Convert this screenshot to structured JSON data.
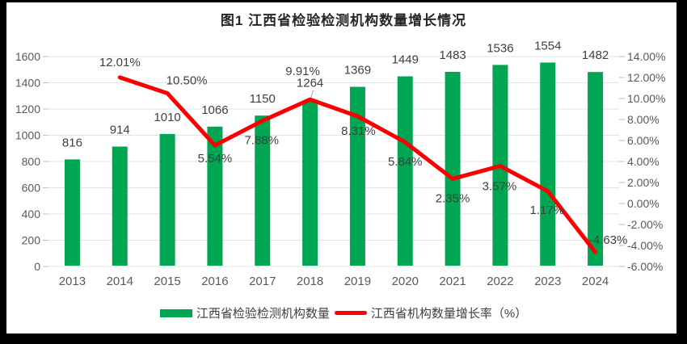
{
  "title": "图1 江西省检验检测机构数量增长情况",
  "colors": {
    "bar": "#00A651",
    "line": "#FB0000",
    "gridline": "#E3E3E3",
    "tick": "#BFBFBF",
    "axis_text": "#595959",
    "data_label_text": "#3F3F3F",
    "leader_line": "#A6A6A6",
    "frame": "#000000"
  },
  "legend": {
    "position": "bottom",
    "items": [
      {
        "label": "江西省检验检测机构数量",
        "swatch": "bar-swatch",
        "color": "#00A651"
      },
      {
        "label": "江西省机构数量增长率（%）",
        "swatch": "line-swatch",
        "color": "#FB0000"
      }
    ]
  },
  "chart_data": {
    "type": "combo",
    "title": "图1 江西省检验检测机构数量增长情况",
    "categories": [
      "2013",
      "2014",
      "2015",
      "2016",
      "2017",
      "2018",
      "2019",
      "2020",
      "2021",
      "2022",
      "2023",
      "2024"
    ],
    "series": [
      {
        "name": "江西省检验检测机构数量",
        "type": "bar",
        "axis": "left",
        "color": "#00A651",
        "values": [
          816,
          914,
          1010,
          1066,
          1150,
          1264,
          1369,
          1449,
          1483,
          1536,
          1554,
          1482
        ],
        "data_labels": [
          "816",
          "914",
          "1010",
          "1066",
          "1150",
          "1264",
          "1369",
          "1449",
          "1483",
          "1536",
          "1554",
          "1482"
        ]
      },
      {
        "name": "江西省机构数量增长率（%）",
        "type": "line",
        "axis": "right",
        "color": "#FB0000",
        "values": [
          null,
          12.01,
          10.5,
          5.54,
          7.88,
          9.91,
          8.31,
          5.84,
          2.35,
          3.57,
          1.17,
          -4.63
        ],
        "data_labels": [
          null,
          "12.01%",
          "10.50%",
          "5.54%",
          "7.88%",
          "9.91%",
          "8.31%",
          "5.84%",
          "2.35%",
          "3.57%",
          "1.17%",
          "-4.63%"
        ]
      }
    ],
    "left_axis": {
      "min": 0,
      "max": 1600,
      "step": 200,
      "ticks": [
        "0",
        "200",
        "400",
        "600",
        "800",
        "1000",
        "1200",
        "1400",
        "1600"
      ]
    },
    "right_axis": {
      "min": -6,
      "max": 14,
      "step": 2,
      "ticks": [
        "-6.00%",
        "-4.00%",
        "-2.00%",
        "0.00%",
        "2.00%",
        "4.00%",
        "6.00%",
        "8.00%",
        "10.00%",
        "12.00%",
        "14.00%"
      ]
    },
    "grid": true,
    "legend_position": "bottom",
    "bar_label_callout_index": 5,
    "line_label_offsets": [
      null,
      [
        0,
        -19
      ],
      [
        24,
        -16
      ],
      [
        0,
        16
      ],
      [
        -1,
        24
      ],
      [
        -9,
        -35
      ],
      [
        1,
        18
      ],
      [
        0,
        24
      ],
      [
        0,
        24
      ],
      [
        -1,
        25
      ],
      [
        -1,
        23
      ],
      [
        16,
        -15
      ]
    ]
  }
}
